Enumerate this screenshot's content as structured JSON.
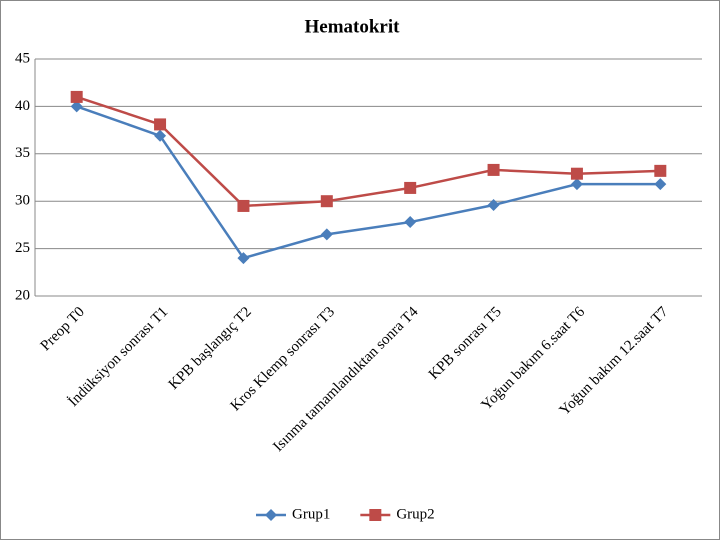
{
  "chart_data": {
    "type": "line",
    "title": "Hematokrit",
    "categories": [
      "Preop T0",
      "İndüksiyon sonrası T1",
      "KPB başlangıç T2",
      "Kros Klemp sonrası T3",
      "Isınma tamamlandıktan sonra T4",
      "KPB sonrası T5",
      "Yoğun bakım 6.saat T6",
      "Yoğun bakım 12.saat T7"
    ],
    "series": [
      {
        "name": "Grup1",
        "color": "#4a7ebb",
        "marker": "diamond",
        "values": [
          40.0,
          36.9,
          24.0,
          26.5,
          27.8,
          29.6,
          31.8,
          31.8
        ]
      },
      {
        "name": "Grup2",
        "color": "#be4b48",
        "marker": "square",
        "values": [
          41.0,
          38.1,
          29.5,
          30.0,
          31.4,
          33.3,
          32.9,
          33.2
        ]
      }
    ],
    "ylim": [
      20,
      45
    ],
    "yticks": [
      20,
      25,
      30,
      35,
      40,
      45
    ],
    "grid": true,
    "legend": "bottom"
  }
}
